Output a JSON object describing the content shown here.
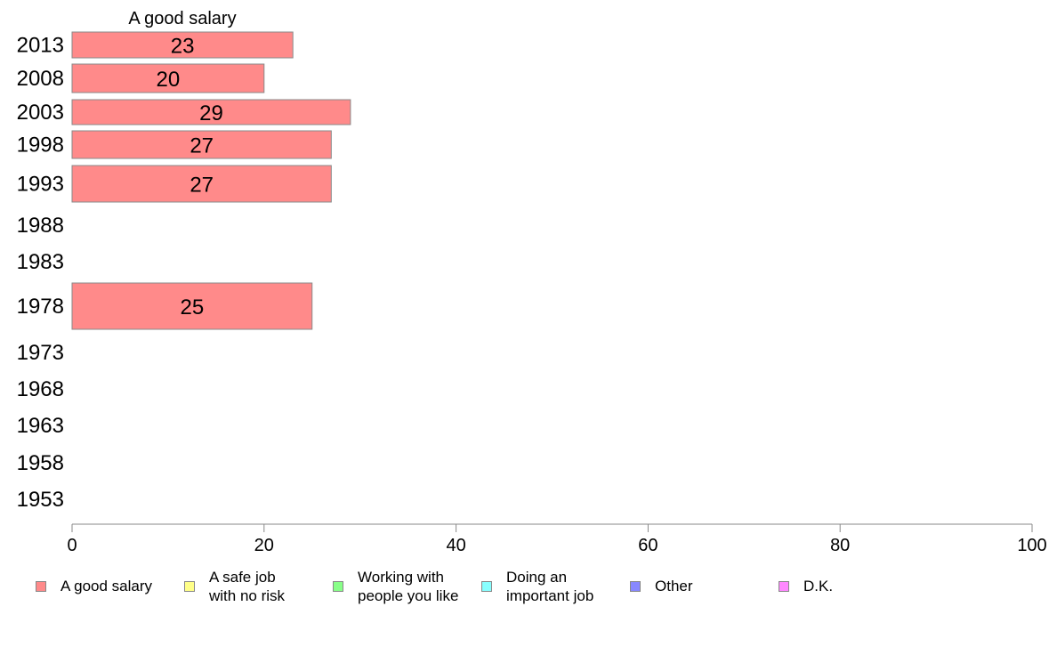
{
  "chart_data": {
    "type": "bar",
    "orientation": "horizontal",
    "title": "A good salary",
    "categories": [
      "2013",
      "2008",
      "2003",
      "1998",
      "1993",
      "1988",
      "1983",
      "1978",
      "1973",
      "1968",
      "1963",
      "1958",
      "1953"
    ],
    "series": [
      {
        "name": "A good salary",
        "color": "#ff8a8a",
        "values": [
          23,
          20,
          29,
          27,
          27,
          null,
          null,
          25,
          null,
          null,
          null,
          null,
          null
        ],
        "labels": [
          "23",
          "20",
          "29",
          "27",
          "27",
          "",
          "",
          "25",
          "",
          "",
          "",
          "",
          ""
        ]
      }
    ],
    "xlim": [
      0,
      100
    ],
    "xticks": [
      "0",
      "20",
      "40",
      "60",
      "80",
      "100"
    ],
    "xlabel": "",
    "ylabel": "",
    "grid": false,
    "legend_position": "bottom"
  },
  "legend": [
    {
      "label": "A good salary",
      "color": "#ff8a8a"
    },
    {
      "label": "A safe job\nwith no risk",
      "color": "#ffff88"
    },
    {
      "label": "Working with\npeople you like",
      "color": "#88ff88"
    },
    {
      "label": "Doing an\nimportant job",
      "color": "#88ffff"
    },
    {
      "label": "Other",
      "color": "#8888ff"
    },
    {
      "label": "D.K.",
      "color": "#ff88ff"
    }
  ]
}
